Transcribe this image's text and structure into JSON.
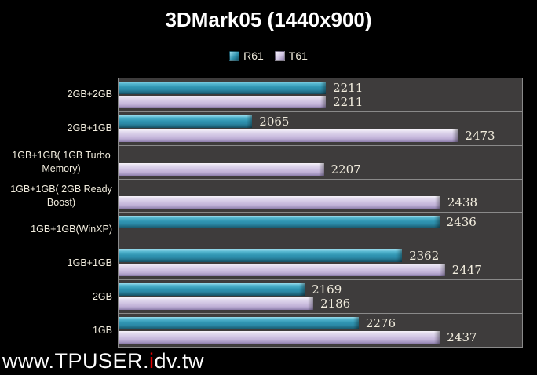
{
  "title": "3DMark05 (1440x900)",
  "legend": [
    {
      "label": "R61",
      "color": "#2f93b0"
    },
    {
      "label": "T61",
      "color": "#cfc3e2"
    }
  ],
  "watermark": {
    "prefix": "www.TPUSER.",
    "highlight": "i",
    "suffix": "dv.tw"
  },
  "colors": {
    "background": "#000000",
    "plot_bg": "#3e3c3c",
    "grid_line": "#8a8a8a",
    "text": "#f2edde",
    "title_text": "#ffffff",
    "r61_top": "#9bdcec",
    "r61_mid": "#2f93b0",
    "r61_bottom": "#164e61",
    "t61_top": "#f8f5fb",
    "t61_mid": "#cfc3e2",
    "t61_bottom": "#8b7ba9",
    "watermark_red": "#e60000"
  },
  "chart_data": {
    "type": "bar",
    "orientation": "horizontal",
    "title": "3DMark05 (1440x900)",
    "categories": [
      "2GB+2GB",
      "2GB+1GB",
      "1GB+1GB( 1GB Turbo Memory)",
      "1GB+1GB( 2GB Ready Boost)",
      "1GB+1GB(WinXP)",
      "1GB+1GB",
      "2GB",
      "1GB"
    ],
    "series": [
      {
        "name": "R61",
        "values": [
          2211,
          2065,
          null,
          null,
          2436,
          2362,
          2169,
          2276
        ]
      },
      {
        "name": "T61",
        "values": [
          2211,
          2473,
          2207,
          2438,
          null,
          2447,
          2186,
          2437
        ]
      }
    ],
    "xlim": [
      1800,
      2600
    ],
    "xlabel": "",
    "ylabel": "",
    "grid": false,
    "legend_position": "top",
    "data_labels": true
  }
}
